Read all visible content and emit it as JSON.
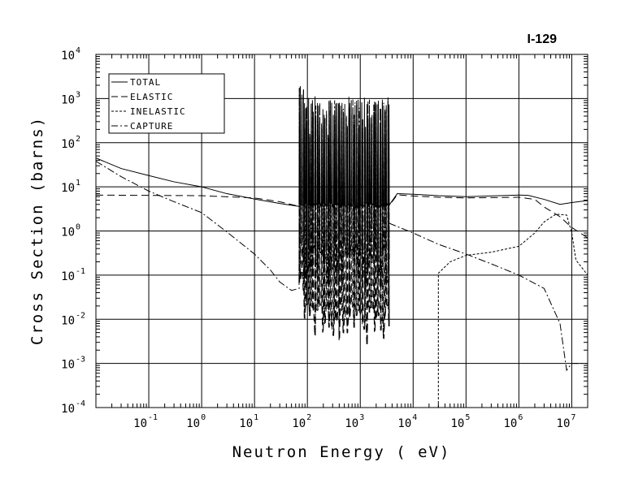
{
  "chart_data": {
    "type": "line",
    "title": "I-129",
    "xlabel": "Neutron Energy ( eV)",
    "ylabel": "Cross Section (barns)",
    "xscale": "log",
    "yscale": "log",
    "xlim": [
      0.01,
      20000000
    ],
    "ylim": [
      0.0001,
      10000
    ],
    "grid": true,
    "legend_position": "top-left",
    "x_ticks": [
      {
        "base": "10",
        "exp": "-1",
        "value": 0.1
      },
      {
        "base": "10",
        "exp": "0",
        "value": 1
      },
      {
        "base": "10",
        "exp": "1",
        "value": 10
      },
      {
        "base": "10",
        "exp": "2",
        "value": 100
      },
      {
        "base": "10",
        "exp": "3",
        "value": 1000
      },
      {
        "base": "10",
        "exp": "4",
        "value": 10000
      },
      {
        "base": "10",
        "exp": "5",
        "value": 100000
      },
      {
        "base": "10",
        "exp": "6",
        "value": 1000000
      },
      {
        "base": "10",
        "exp": "7",
        "value": 10000000
      }
    ],
    "y_ticks": [
      {
        "base": "10",
        "exp": "4",
        "value": 10000
      },
      {
        "base": "10",
        "exp": "3",
        "value": 1000
      },
      {
        "base": "10",
        "exp": "2",
        "value": 100
      },
      {
        "base": "10",
        "exp": "1",
        "value": 10
      },
      {
        "base": "10",
        "exp": "0",
        "value": 1
      },
      {
        "base": "10",
        "exp": "-1",
        "value": 0.1
      },
      {
        "base": "10",
        "exp": "-2",
        "value": 0.01
      },
      {
        "base": "10",
        "exp": "-3",
        "value": 0.001
      },
      {
        "base": "10",
        "exp": "-4",
        "value": 0.0001
      }
    ],
    "resonance_region_eV": [
      70,
      3500
    ],
    "series": [
      {
        "name": "TOTAL",
        "dash": "solid",
        "points": [
          [
            0.01,
            45
          ],
          [
            0.03,
            26
          ],
          [
            0.1,
            18
          ],
          [
            0.3,
            13
          ],
          [
            1,
            10
          ],
          [
            3,
            7
          ],
          [
            10,
            5.3
          ],
          [
            30,
            4.2
          ],
          [
            70,
            3.6
          ],
          [
            3500,
            3.8
          ],
          [
            5000,
            7
          ],
          [
            10000,
            6.8
          ],
          [
            30000,
            6.3
          ],
          [
            100000,
            6
          ],
          [
            1000000,
            6.5
          ],
          [
            1500000,
            6.4
          ],
          [
            3000000,
            5.2
          ],
          [
            6000000,
            4
          ],
          [
            10000000,
            4.4
          ],
          [
            20000000,
            4.9
          ]
        ]
      },
      {
        "name": "ELASTIC",
        "dash": "long-dash",
        "points": [
          [
            0.01,
            6.5
          ],
          [
            1,
            6.3
          ],
          [
            10,
            5.6
          ],
          [
            30,
            4.6
          ],
          [
            70,
            3.6
          ],
          [
            3500,
            3.7
          ],
          [
            5000,
            6.6
          ],
          [
            10000,
            6.2
          ],
          [
            30000,
            5.8
          ],
          [
            100000,
            5.6
          ],
          [
            1000000,
            5.8
          ],
          [
            2000000,
            5.2
          ],
          [
            3000000,
            3.5
          ],
          [
            6000000,
            2.1
          ],
          [
            10000000,
            1.2
          ],
          [
            20000000,
            0.7
          ]
        ]
      },
      {
        "name": "INELASTIC",
        "dash": "short-dash",
        "points": [
          [
            30000,
            0.0001
          ],
          [
            30001,
            0.11
          ],
          [
            50000,
            0.2
          ],
          [
            100000,
            0.28
          ],
          [
            300000,
            0.33
          ],
          [
            1000000,
            0.45
          ],
          [
            2000000,
            0.9
          ],
          [
            3000000,
            1.6
          ],
          [
            5000000,
            2.4
          ],
          [
            8000000,
            2.3
          ],
          [
            10000000,
            0.9
          ],
          [
            12000000,
            0.22
          ],
          [
            20000000,
            0.1
          ]
        ]
      },
      {
        "name": "CAPTURE",
        "dash": "dash-dot",
        "points": [
          [
            0.01,
            38
          ],
          [
            0.03,
            17
          ],
          [
            0.1,
            8
          ],
          [
            0.3,
            4.6
          ],
          [
            1,
            2.6
          ],
          [
            3,
            0.95
          ],
          [
            10,
            0.3
          ],
          [
            20,
            0.13
          ],
          [
            30,
            0.07
          ],
          [
            50,
            0.045
          ],
          [
            70,
            0.05
          ],
          [
            3500,
            1.5
          ],
          [
            10000,
            0.9
          ],
          [
            30000,
            0.5
          ],
          [
            100000,
            0.3
          ],
          [
            300000,
            0.18
          ],
          [
            1000000,
            0.1
          ],
          [
            3000000,
            0.05
          ],
          [
            6000000,
            0.008
          ],
          [
            8000000,
            0.0007
          ],
          [
            10000000,
            0.001
          ],
          [
            20000000,
            0.001
          ]
        ]
      }
    ]
  }
}
